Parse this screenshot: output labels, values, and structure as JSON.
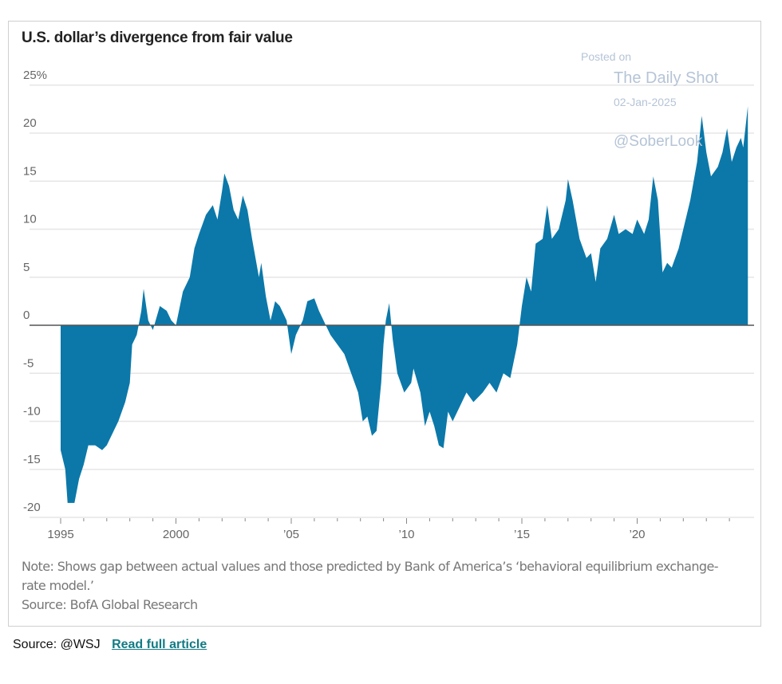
{
  "chart_data": {
    "type": "area",
    "title": "U.S. dollar’s divergence from fair value",
    "xlabel": "",
    "ylabel": "",
    "ylim": [
      -20,
      25
    ],
    "xlim": [
      1995,
      2025
    ],
    "grid": true,
    "y_ticks": [
      {
        "value": 25,
        "label": "25%"
      },
      {
        "value": 20,
        "label": "20"
      },
      {
        "value": 15,
        "label": "15"
      },
      {
        "value": 10,
        "label": "10"
      },
      {
        "value": 5,
        "label": "5"
      },
      {
        "value": 0,
        "label": "0"
      },
      {
        "value": -5,
        "label": "-5"
      },
      {
        "value": -10,
        "label": "-10"
      },
      {
        "value": -15,
        "label": "-15"
      },
      {
        "value": -20,
        "label": "-20"
      }
    ],
    "x_ticks": [
      {
        "value": 1995,
        "label": "1995"
      },
      {
        "value": 2000,
        "label": "2000"
      },
      {
        "value": 2005,
        "label": "’05"
      },
      {
        "value": 2010,
        "label": "’10"
      },
      {
        "value": 2015,
        "label": "’15"
      },
      {
        "value": 2020,
        "label": "’20"
      }
    ],
    "series": [
      {
        "name": "Divergence from fair value (%)",
        "color": "#0b78a9",
        "x": [
          1995.0,
          1995.2,
          1995.3,
          1995.6,
          1995.8,
          1996.0,
          1996.2,
          1996.5,
          1996.8,
          1997.0,
          1997.3,
          1997.5,
          1997.8,
          1998.0,
          1998.1,
          1998.3,
          1998.5,
          1998.6,
          1998.8,
          1999.0,
          1999.3,
          1999.6,
          1999.8,
          2000.0,
          2000.3,
          2000.6,
          2000.8,
          2001.0,
          2001.3,
          2001.6,
          2001.8,
          2002.0,
          2002.1,
          2002.3,
          2002.5,
          2002.7,
          2002.9,
          2003.1,
          2003.3,
          2003.6,
          2003.7,
          2003.9,
          2004.1,
          2004.3,
          2004.5,
          2004.8,
          2005.0,
          2005.2,
          2005.5,
          2005.7,
          2006.0,
          2006.2,
          2006.5,
          2006.7,
          2007.0,
          2007.3,
          2007.6,
          2007.9,
          2008.1,
          2008.3,
          2008.5,
          2008.7,
          2008.9,
          2009.0,
          2009.1,
          2009.25,
          2009.4,
          2009.6,
          2009.9,
          2010.2,
          2010.3,
          2010.6,
          2010.8,
          2011.0,
          2011.2,
          2011.4,
          2011.6,
          2011.8,
          2012.0,
          2012.3,
          2012.6,
          2012.9,
          2013.3,
          2013.6,
          2013.9,
          2014.2,
          2014.5,
          2014.8,
          2015.0,
          2015.2,
          2015.4,
          2015.6,
          2015.9,
          2016.1,
          2016.3,
          2016.6,
          2016.9,
          2017.0,
          2017.2,
          2017.5,
          2017.8,
          2018.0,
          2018.2,
          2018.4,
          2018.7,
          2019.0,
          2019.2,
          2019.5,
          2019.8,
          2020.0,
          2020.3,
          2020.5,
          2020.7,
          2020.9,
          2021.1,
          2021.3,
          2021.5,
          2021.8,
          2022.0,
          2022.3,
          2022.6,
          2022.8,
          2023.0,
          2023.2,
          2023.5,
          2023.7,
          2023.9,
          2024.1,
          2024.3,
          2024.5,
          2024.6,
          2024.8
        ],
        "values": [
          -13,
          -15,
          -18.5,
          -18.5,
          -16,
          -14.5,
          -12.5,
          -12.5,
          -13,
          -12.5,
          -11,
          -10,
          -8,
          -6,
          -2,
          -1,
          1.5,
          3.8,
          0.5,
          -0.5,
          2,
          1.5,
          0.5,
          0,
          3.5,
          5,
          8,
          9.5,
          11.5,
          12.5,
          11,
          14,
          15.8,
          14.5,
          12,
          11,
          13.5,
          12,
          9,
          5,
          6.5,
          3,
          0.5,
          2.5,
          2,
          0.5,
          -3,
          -1,
          0.5,
          2.5,
          2.8,
          1.5,
          0,
          -1,
          -2,
          -3,
          -5,
          -7,
          -10,
          -9.5,
          -11.5,
          -11,
          -6,
          -2,
          0.5,
          2.3,
          -1.5,
          -5,
          -7,
          -6,
          -4.5,
          -7,
          -10.5,
          -9,
          -10.5,
          -12.5,
          -12.8,
          -9,
          -10,
          -8.5,
          -7,
          -8,
          -7,
          -6,
          -7,
          -5,
          -5.5,
          -2,
          2,
          5,
          3.5,
          8.5,
          9,
          12.5,
          9,
          10,
          13,
          15.2,
          13,
          9,
          7,
          7.5,
          4.5,
          8,
          9,
          11.5,
          9.5,
          10,
          9.5,
          11,
          9.5,
          11,
          15.5,
          13,
          5.5,
          6.5,
          6,
          8,
          10,
          13,
          17,
          21.8,
          18,
          15.5,
          16.5,
          18,
          20.5,
          17,
          18.5,
          19.5,
          18.5,
          22.8
        ]
      }
    ]
  },
  "note": "Note: Shows gap between actual values and those predicted by Bank of America’s ‘behavioral equilibrium exchange-rate model.’",
  "source": "Source: BofA Global Research",
  "watermark": {
    "posted": "Posted on",
    "brand": "The Daily Shot",
    "date": "02-Jan-2025",
    "handle": "@SoberLook"
  },
  "footer": {
    "source": "Source: @WSJ",
    "link": "Read full article"
  }
}
